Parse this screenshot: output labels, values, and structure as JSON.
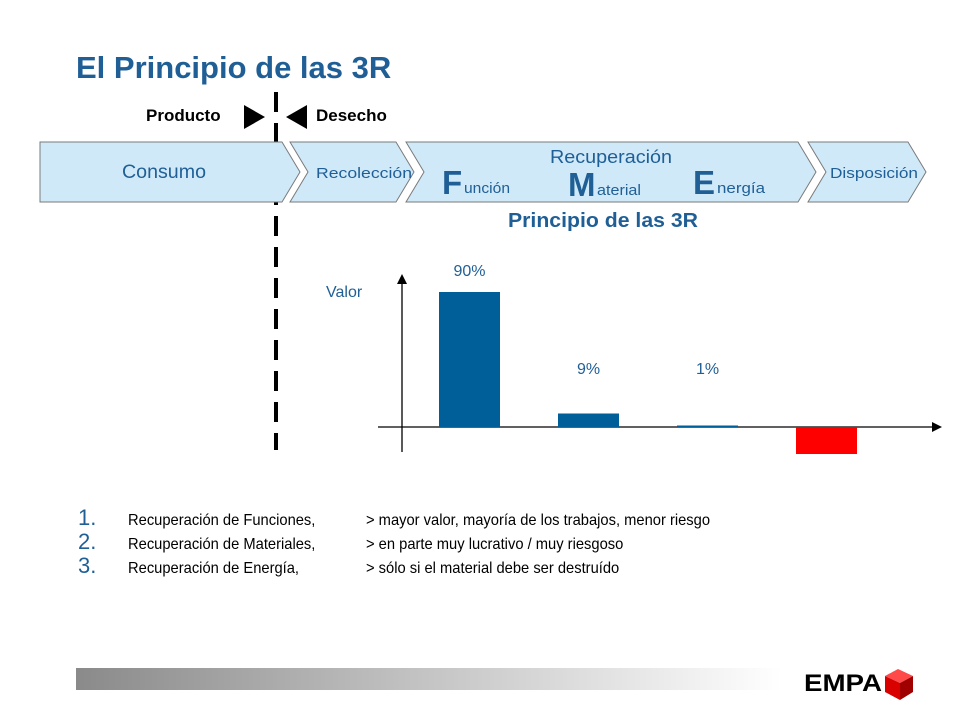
{
  "title": "El Principio de las 3R",
  "boundary": {
    "left_label": "Producto",
    "right_label": "Desecho"
  },
  "stages": {
    "consumo": "Consumo",
    "recoleccion": "Recolección",
    "recuperacion": "Recuperación",
    "disposicion": "Disposición",
    "funcion_initial": "F",
    "funcion_rest": "unción",
    "material_initial": "M",
    "material_rest": "aterial",
    "energia_initial": "E",
    "energia_rest": "nergía"
  },
  "colors": {
    "stage_fill": "#cfe9f9",
    "bar": "#005f99",
    "negative_bar": "#ff0000",
    "title": "#1f5f96",
    "stage_text": "#1f5f96"
  },
  "chart_data": {
    "type": "bar",
    "title": "Principio de las 3R",
    "ylabel": "Valor",
    "categories": [
      "",
      "",
      "",
      ""
    ],
    "values": [
      90,
      9,
      1,
      -18
    ],
    "data_labels": [
      "90%",
      "9%",
      "1%",
      ""
    ],
    "grid": false
  },
  "list": [
    {
      "num": "1.",
      "item": "Recuperación de Funciones,",
      "desc": "> mayor valor, mayoría de los trabajos, menor riesgo"
    },
    {
      "num": "2.",
      "item": "Recuperación de Materiales,",
      "desc": "> en parte muy lucrativo / muy riesgoso"
    },
    {
      "num": "3.",
      "item": "Recuperación de Energía,",
      "desc": "> sólo si el material debe ser destruído"
    }
  ],
  "logo": {
    "text": "EMPA"
  }
}
